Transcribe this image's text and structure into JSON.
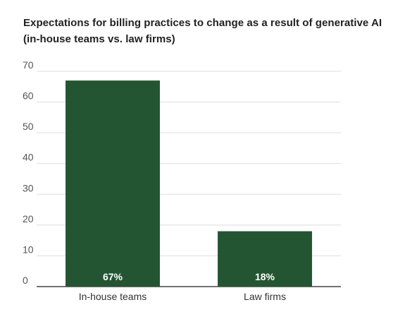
{
  "chart_data": {
    "type": "bar",
    "title_lines": [
      "Expectations for billing practices to change as a result of generative AI",
      "(in-house teams vs. law firms)"
    ],
    "categories": [
      "In-house teams",
      "Law firms"
    ],
    "values": [
      67,
      18
    ],
    "data_labels": [
      "67%",
      "18%"
    ],
    "ylim": [
      0,
      70
    ],
    "yticks": [
      0,
      10,
      20,
      30,
      40,
      50,
      60,
      70
    ],
    "grid": true,
    "legend": "none",
    "xlabel": "",
    "ylabel": ""
  },
  "colors": {
    "bar": "#245532",
    "grid": "#dddddd",
    "axis": "#444444",
    "title": "#222222",
    "tick_text": "#555555",
    "category_text": "#333333",
    "data_label": "#ffffff"
  }
}
